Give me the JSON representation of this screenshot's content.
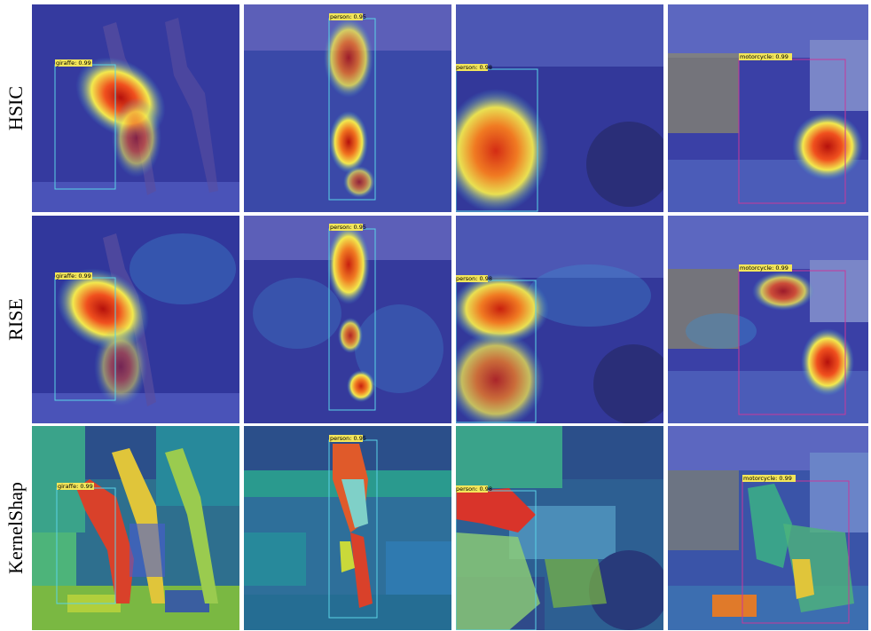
{
  "rows": [
    {
      "label": "HSIC"
    },
    {
      "label": "RISE"
    },
    {
      "label": "KernelShap"
    }
  ],
  "columns": [
    {
      "detection_label": "giraffe: 0.99"
    },
    {
      "detection_label": "person: 0.95"
    },
    {
      "detection_label": "person: 0.98"
    },
    {
      "detection_label": "motorcycle: 0.99"
    }
  ],
  "colors": {
    "heat_low": "#3a3fb0",
    "heat_mid": "#f2e94e",
    "heat_high": "#b5110c",
    "box_cyan": "#5ad3e6",
    "box_magenta": "#c8389a",
    "label_bg": "#f3e65a"
  }
}
